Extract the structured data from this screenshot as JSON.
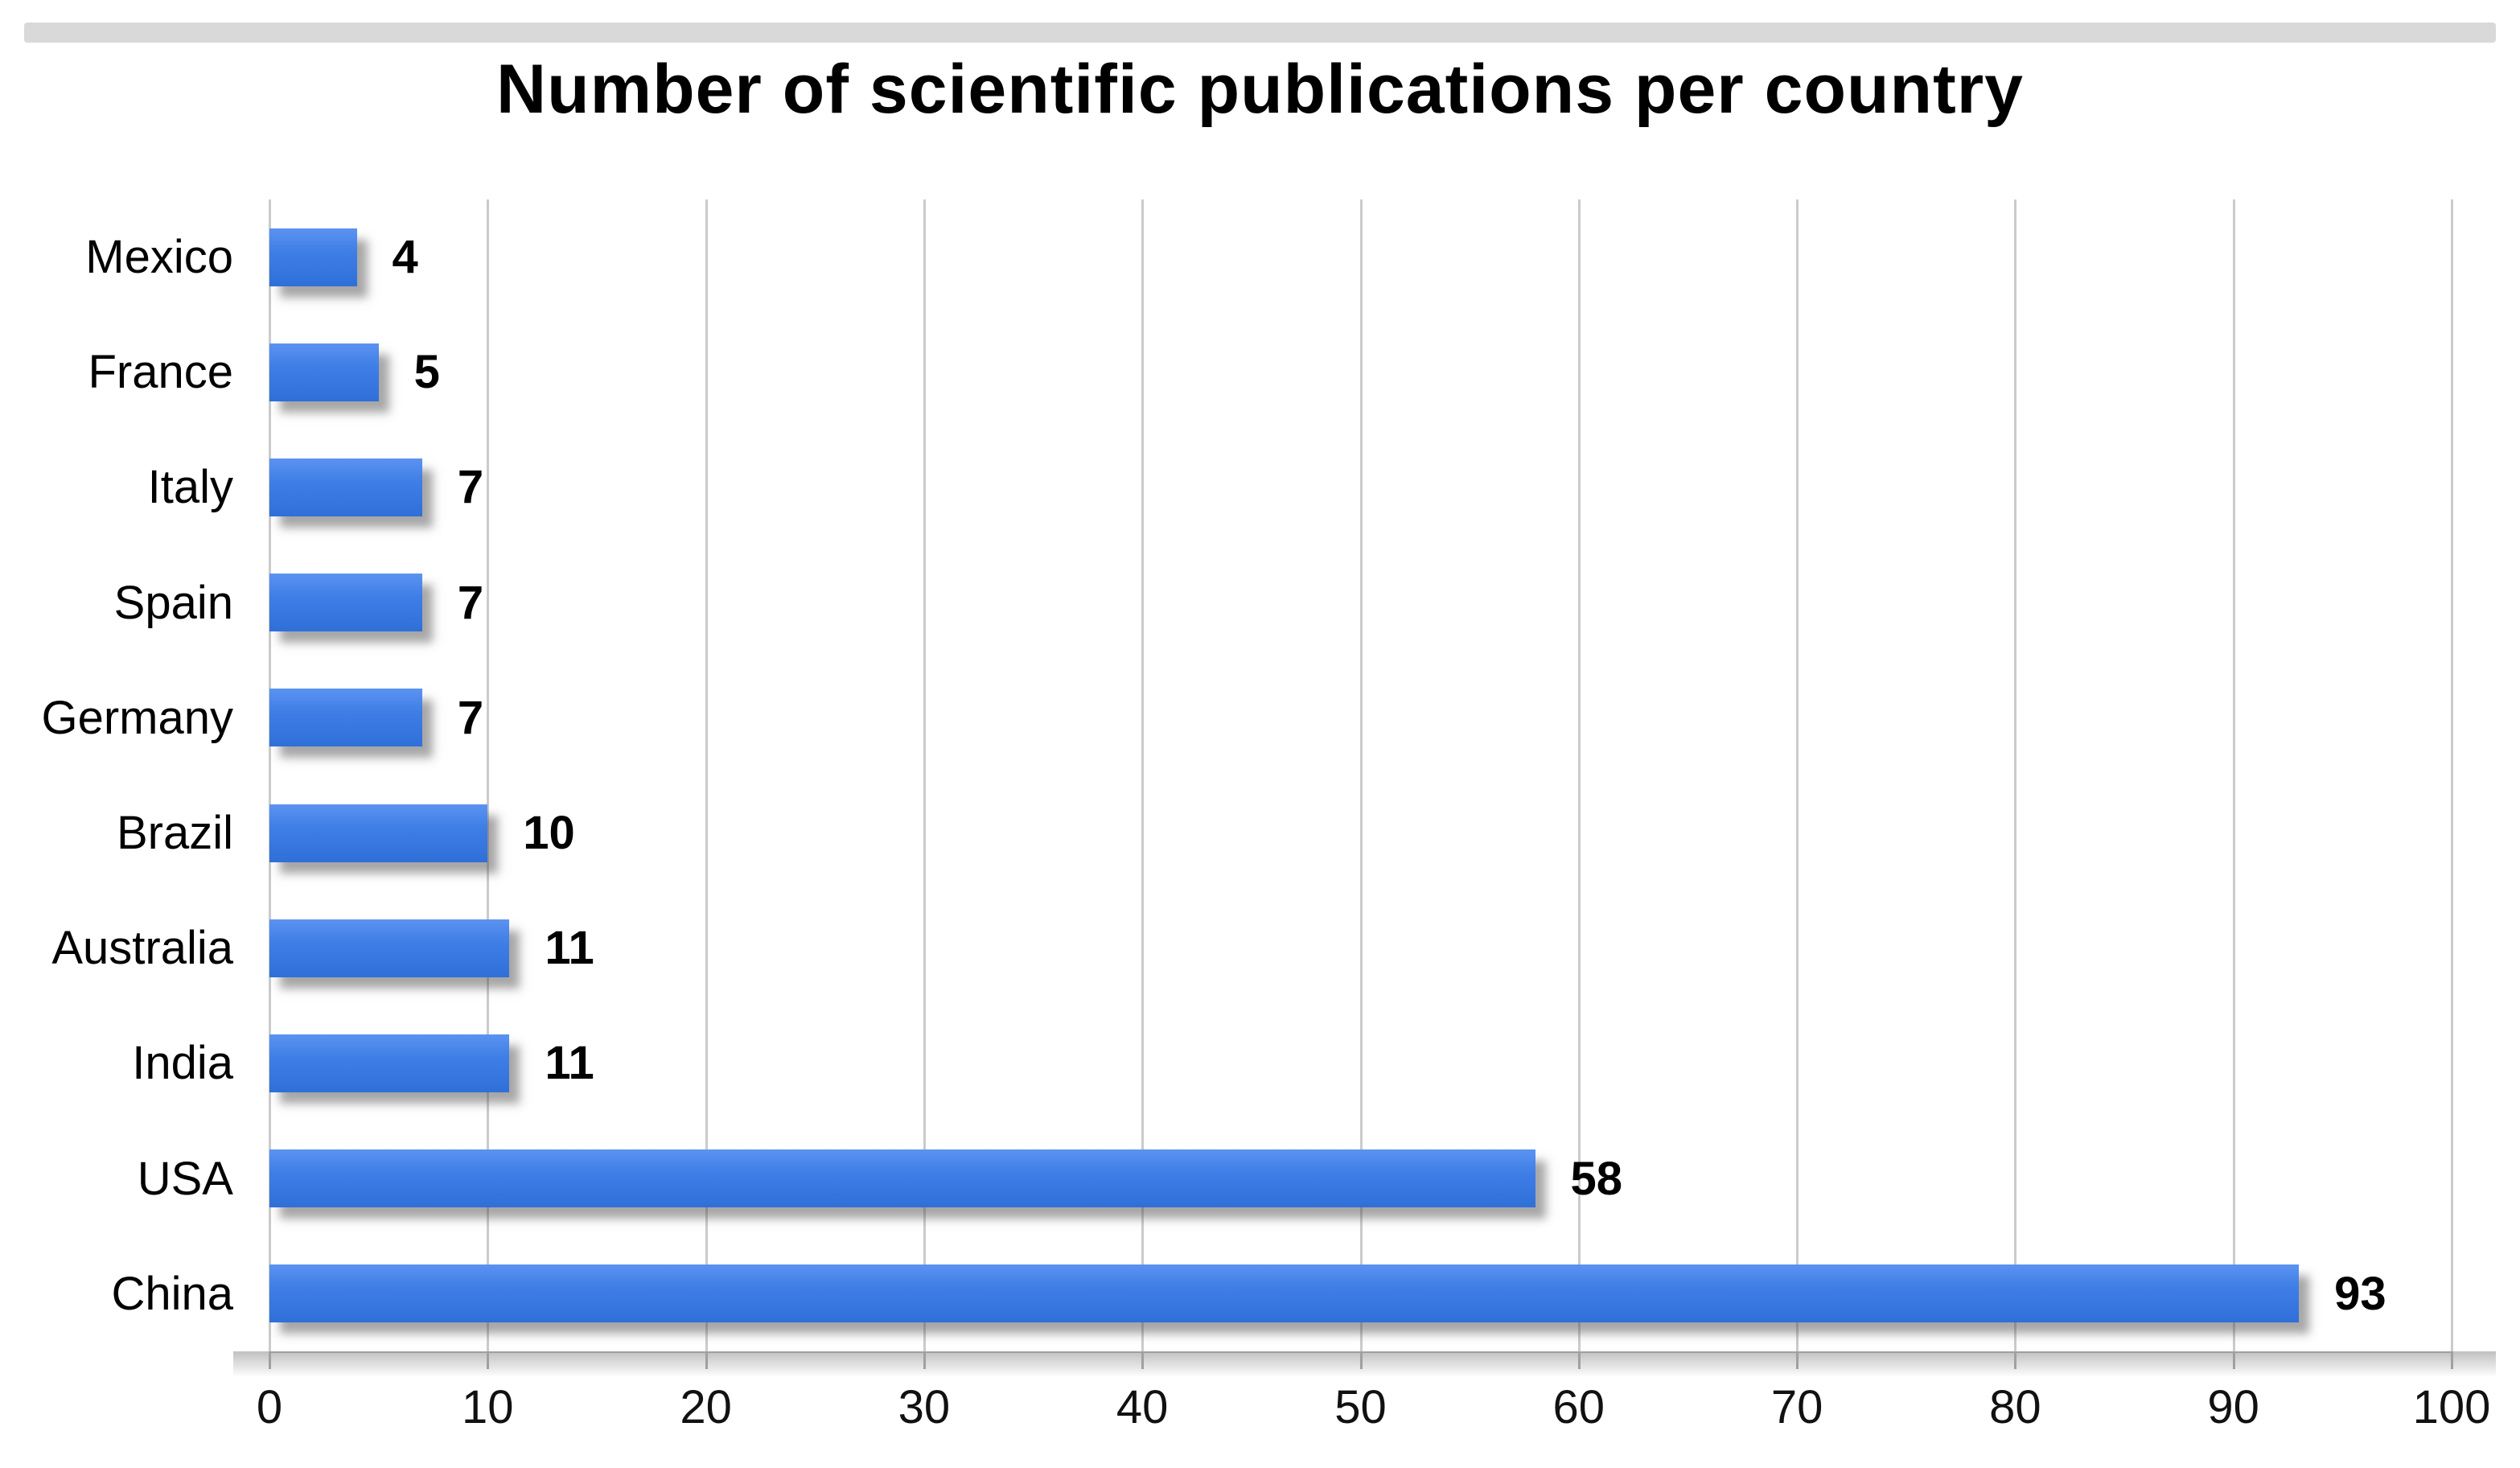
{
  "chart_data": {
    "type": "bar",
    "orientation": "horizontal",
    "title": "Number of scientific publications per country",
    "categories": [
      "Mexico",
      "France",
      "Italy",
      "Spain",
      "Germany",
      "Brazil",
      "Australia",
      "India",
      "USA",
      "China"
    ],
    "values": [
      4,
      5,
      7,
      7,
      7,
      10,
      11,
      11,
      58,
      93
    ],
    "value_labels": [
      "4",
      "5",
      "7",
      "7",
      "7",
      "10",
      "11",
      "11",
      "58",
      "93"
    ],
    "x_ticks": [
      "0",
      "10",
      "20",
      "30",
      "40",
      "50",
      "60",
      "70",
      "80",
      "90",
      "100"
    ],
    "xlim": [
      0,
      100
    ],
    "xlabel": "",
    "ylabel": "",
    "grid": "vertical-only",
    "legend": "none",
    "colors": {
      "bar": "#3f7ee6",
      "bar_gradient_top": "#5b93f0",
      "bar_gradient_bottom": "#2f6fd8",
      "gridline": "#cbcbcb",
      "axis_tick": "#a0a0a0",
      "text": "#000000",
      "top_strip": "#d9d9d9",
      "background": "#ffffff"
    }
  }
}
